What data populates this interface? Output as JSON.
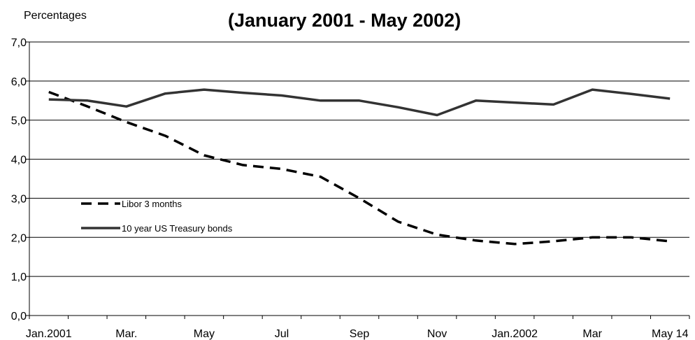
{
  "chart_data": {
    "type": "line",
    "title": "(January 2001 - May 2002)",
    "ylabel": "Percentages",
    "xlabel": "",
    "ylim": [
      0,
      7
    ],
    "yticks": [
      "0,0",
      "1,0",
      "2,0",
      "3,0",
      "4,0",
      "5,0",
      "6,0",
      "7,0"
    ],
    "x_tick_labels": [
      "Jan.2001",
      "Mar.",
      "May",
      "Jul",
      "Sep",
      "Nov",
      "Jan.2002",
      "Mar",
      "May 14"
    ],
    "grid": "horizontal",
    "legend_placement": "left-center",
    "series": [
      {
        "name": "Libor 3 months",
        "style": "dashed",
        "color": "#000000",
        "x": [
          "Jan.2001",
          "Feb.2001",
          "Mar.2001",
          "Apr.2001",
          "May 2001",
          "Jun.2001",
          "Jul.2001",
          "Aug.2001",
          "Sep.2001",
          "Oct.2001",
          "Nov.2001",
          "Dec.2001",
          "Jan.2002",
          "Feb.2002",
          "Mar.2002",
          "Apr.2002",
          "May 14 2002"
        ],
        "values": [
          5.72,
          5.35,
          4.95,
          4.6,
          4.1,
          3.85,
          3.75,
          3.55,
          3.0,
          2.4,
          2.07,
          1.92,
          1.83,
          1.9,
          2.0,
          2.0,
          1.9
        ]
      },
      {
        "name": "10 year US Treasury bonds",
        "style": "solid",
        "color": "#333333",
        "x": [
          "Jan.2001",
          "Feb.2001",
          "Mar.2001",
          "Apr.2001",
          "May 2001",
          "Jun.2001",
          "Jul.2001",
          "Aug.2001",
          "Sep.2001",
          "Oct.2001",
          "Nov.2001",
          "Dec.2001",
          "Jan.2002",
          "Feb.2002",
          "Mar.2002",
          "Apr.2002",
          "May 14 2002"
        ],
        "values": [
          5.53,
          5.5,
          5.35,
          5.68,
          5.78,
          5.7,
          5.63,
          5.5,
          5.5,
          5.33,
          5.13,
          5.5,
          5.45,
          5.4,
          5.78,
          5.67,
          5.55
        ]
      }
    ]
  }
}
